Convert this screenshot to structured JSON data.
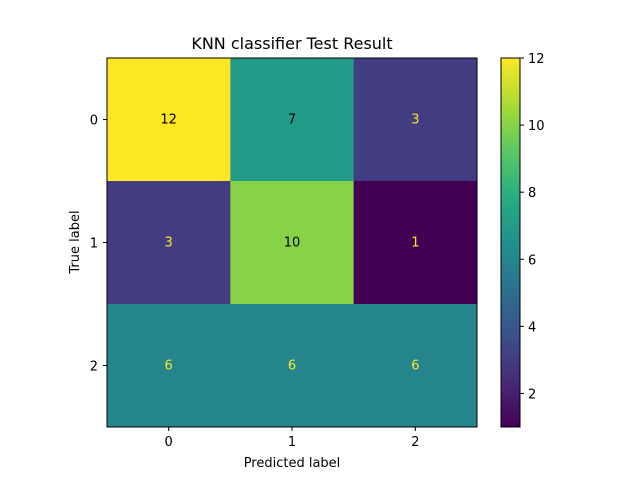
{
  "chart_data": {
    "type": "heatmap",
    "title": "KNN classifier Test Result",
    "xlabel": "Predicted label",
    "ylabel": "True label",
    "x_categories": [
      "0",
      "1",
      "2"
    ],
    "y_categories": [
      "0",
      "1",
      "2"
    ],
    "values": [
      [
        12,
        7,
        3
      ],
      [
        3,
        10,
        1
      ],
      [
        6,
        6,
        6
      ]
    ],
    "colormap": "viridis",
    "colorbar": {
      "min": 1,
      "max": 12,
      "ticks": [
        "2",
        "4",
        "6",
        "8",
        "10",
        "12"
      ]
    },
    "grid": false
  }
}
